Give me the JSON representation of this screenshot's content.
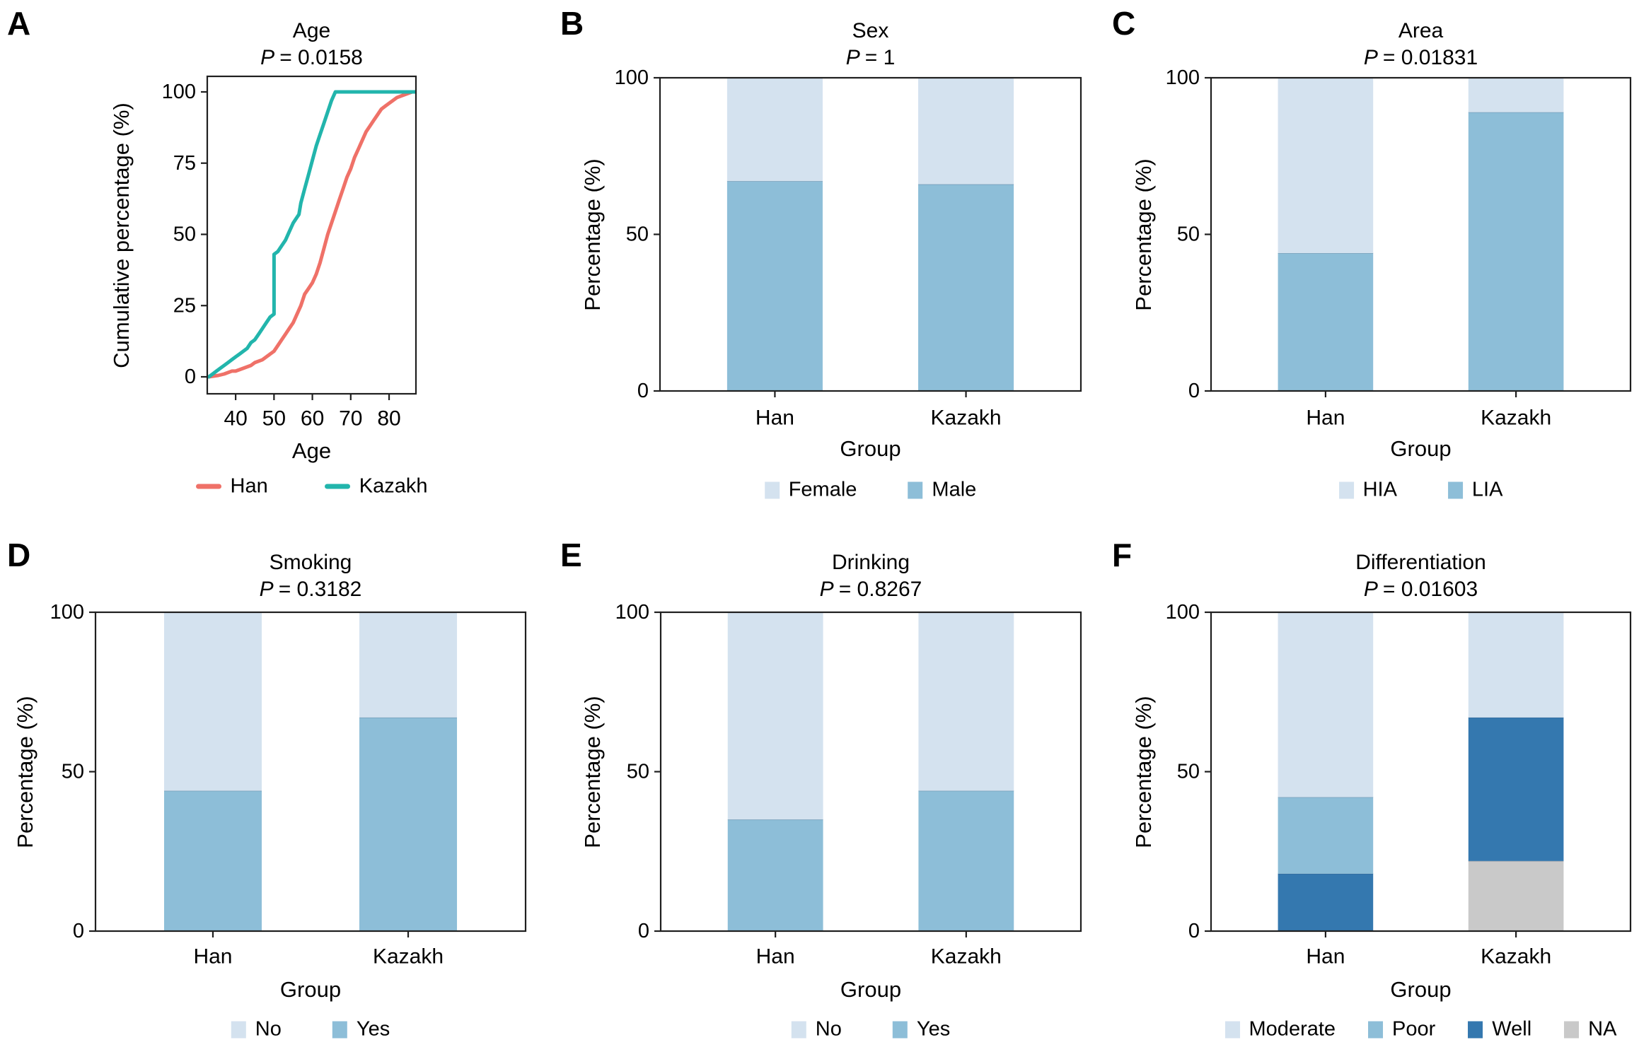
{
  "colors": {
    "light_blue": "#d4e2ef",
    "medium_blue": "#8dbed8",
    "dark_blue": "#3478af",
    "gray": "#c9c9c9",
    "salmon": "#ef7168",
    "teal": "#22b5ac",
    "axis": "#1f1f1f"
  },
  "chart_data": [
    {
      "letter": "A",
      "type": "line",
      "title": "Age",
      "p_symbol": "P",
      "p_rest": "= 0.0158",
      "xlabel": "Age",
      "ylabel": "Cumulative percentage (%)",
      "xticks": [
        40,
        50,
        60,
        70,
        80
      ],
      "yticks": [
        0,
        25,
        50,
        75,
        100
      ],
      "ylim": [
        0,
        100
      ],
      "x_domain": [
        32.6,
        87
      ],
      "legend_position": "bottom",
      "series": [
        {
          "name": "Han",
          "color": "#ef7168",
          "points": [
            [
              33,
              0
            ],
            [
              35.5,
              0.5
            ],
            [
              37,
              1
            ],
            [
              39,
              2
            ],
            [
              40,
              2
            ],
            [
              41,
              2.5
            ],
            [
              42,
              3
            ],
            [
              44,
              4
            ],
            [
              45,
              5
            ],
            [
              47,
              6
            ],
            [
              48,
              7
            ],
            [
              49,
              8
            ],
            [
              50,
              9
            ],
            [
              51,
              11
            ],
            [
              52,
              13
            ],
            [
              53,
              15
            ],
            [
              54,
              17
            ],
            [
              55,
              19
            ],
            [
              56,
              22
            ],
            [
              57,
              25
            ],
            [
              58,
              29
            ],
            [
              59,
              31
            ],
            [
              60,
              33
            ],
            [
              61,
              36
            ],
            [
              62,
              40
            ],
            [
              63,
              45
            ],
            [
              64,
              50
            ],
            [
              65,
              54
            ],
            [
              66,
              58
            ],
            [
              67,
              62
            ],
            [
              68,
              66
            ],
            [
              69,
              70
            ],
            [
              70,
              73
            ],
            [
              71,
              77
            ],
            [
              72,
              80
            ],
            [
              73,
              83
            ],
            [
              74,
              86
            ],
            [
              75,
              88
            ],
            [
              76,
              90
            ],
            [
              77,
              92
            ],
            [
              78,
              94
            ],
            [
              79,
              95
            ],
            [
              80,
              96
            ],
            [
              81,
              97
            ],
            [
              82,
              98
            ],
            [
              84,
              99
            ],
            [
              86,
              100
            ],
            [
              87,
              100
            ]
          ]
        },
        {
          "name": "Kazakh",
          "color": "#22b5ac",
          "points": [
            [
              33,
              0
            ],
            [
              34,
              1
            ],
            [
              35,
              2
            ],
            [
              36,
              3
            ],
            [
              37,
              4
            ],
            [
              38,
              5
            ],
            [
              39,
              6
            ],
            [
              40,
              7
            ],
            [
              41,
              8
            ],
            [
              42,
              9
            ],
            [
              43,
              10
            ],
            [
              44,
              12
            ],
            [
              45,
              13
            ],
            [
              46,
              15
            ],
            [
              47,
              17
            ],
            [
              48,
              19
            ],
            [
              49,
              21
            ],
            [
              50,
              22
            ],
            [
              50,
              43
            ],
            [
              51,
              44
            ],
            [
              52,
              46
            ],
            [
              53,
              48
            ],
            [
              54,
              51
            ],
            [
              55,
              54
            ],
            [
              56,
              56
            ],
            [
              56.5,
              57
            ],
            [
              57,
              61
            ],
            [
              58,
              66
            ],
            [
              59,
              71
            ],
            [
              60,
              76
            ],
            [
              61,
              81
            ],
            [
              62,
              85
            ],
            [
              63,
              89
            ],
            [
              64,
              93
            ],
            [
              65,
              97
            ],
            [
              66,
              100
            ],
            [
              87,
              100
            ]
          ]
        }
      ]
    },
    {
      "letter": "B",
      "type": "stacked-bar",
      "title": "Sex",
      "p_symbol": "P",
      "p_rest": "= 1",
      "xlabel": "Group",
      "ylabel": "Percentage (%)",
      "yticks": [
        0,
        50,
        100
      ],
      "ylim": [
        0,
        100
      ],
      "categories": [
        "Han",
        "Kazakh"
      ],
      "segments": [
        {
          "label": "Female",
          "color": "#d4e2ef",
          "values": [
            33,
            34
          ]
        },
        {
          "label": "Male",
          "color": "#8dbed8",
          "values": [
            67,
            66
          ]
        }
      ]
    },
    {
      "letter": "C",
      "type": "stacked-bar",
      "title": "Area",
      "p_symbol": "P",
      "p_rest": "= 0.01831",
      "xlabel": "Group",
      "ylabel": "Percentage (%)",
      "yticks": [
        0,
        50,
        100
      ],
      "ylim": [
        0,
        100
      ],
      "categories": [
        "Han",
        "Kazakh"
      ],
      "segments": [
        {
          "label": "HIA",
          "color": "#d4e2ef",
          "values": [
            56,
            11
          ]
        },
        {
          "label": "LIA",
          "color": "#8dbed8",
          "values": [
            44,
            89
          ]
        }
      ]
    },
    {
      "letter": "D",
      "type": "stacked-bar",
      "title": "Smoking",
      "p_symbol": "P",
      "p_rest": "= 0.3182",
      "xlabel": "Group",
      "ylabel": "Percentage (%)",
      "yticks": [
        0,
        50,
        100
      ],
      "ylim": [
        0,
        100
      ],
      "categories": [
        "Han",
        "Kazakh"
      ],
      "segments": [
        {
          "label": "No",
          "color": "#d4e2ef",
          "values": [
            56,
            33
          ]
        },
        {
          "label": "Yes",
          "color": "#8dbed8",
          "values": [
            44,
            67
          ]
        }
      ]
    },
    {
      "letter": "E",
      "type": "stacked-bar",
      "title": "Drinking",
      "p_symbol": "P",
      "p_rest": "= 0.8267",
      "xlabel": "Group",
      "ylabel": "Percentage (%)",
      "yticks": [
        0,
        50,
        100
      ],
      "ylim": [
        0,
        100
      ],
      "categories": [
        "Han",
        "Kazakh"
      ],
      "segments": [
        {
          "label": "No",
          "color": "#d4e2ef",
          "values": [
            65,
            56
          ]
        },
        {
          "label": "Yes",
          "color": "#8dbed8",
          "values": [
            35,
            44
          ]
        }
      ]
    },
    {
      "letter": "F",
      "type": "stacked-bar",
      "title": "Differentiation",
      "p_symbol": "P",
      "p_rest": "= 0.01603",
      "xlabel": "Group",
      "ylabel": "Percentage (%)",
      "yticks": [
        0,
        50,
        100
      ],
      "ylim": [
        0,
        100
      ],
      "categories": [
        "Han",
        "Kazakh"
      ],
      "segments": [
        {
          "label": "Moderate",
          "color": "#d4e2ef",
          "values": [
            58,
            33
          ]
        },
        {
          "label": "Poor",
          "color": "#8dbed8",
          "values": [
            24,
            0
          ]
        },
        {
          "label": "Well",
          "color": "#3478af",
          "values": [
            18,
            45
          ]
        },
        {
          "label": "NA",
          "color": "#c9c9c9",
          "values": [
            0,
            22
          ]
        }
      ]
    }
  ]
}
